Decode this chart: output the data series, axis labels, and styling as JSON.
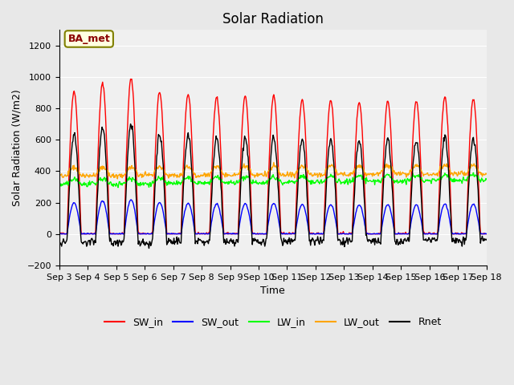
{
  "title": "Solar Radiation",
  "xlabel": "Time",
  "ylabel": "Solar Radiation (W/m2)",
  "ylim": [
    -200,
    1300
  ],
  "yticks": [
    -200,
    0,
    200,
    400,
    600,
    800,
    1000,
    1200
  ],
  "annotation": "BA_met",
  "legend": [
    "SW_in",
    "SW_out",
    "LW_in",
    "LW_out",
    "Rnet"
  ],
  "colors": {
    "SW_in": "red",
    "SW_out": "blue",
    "LW_in": "lime",
    "LW_out": "orange",
    "Rnet": "black"
  },
  "xtick_labels": [
    "Sep 3",
    "Sep 4",
    "Sep 5",
    "Sep 6",
    "Sep 7",
    "Sep 8",
    "Sep 9",
    "Sep 10",
    "Sep 11",
    "Sep 12",
    "Sep 13",
    "Sep 14",
    "Sep 15",
    "Sep 16",
    "Sep 17",
    "Sep 18"
  ],
  "background_color": "#e8e8e8",
  "plot_bg_color": "#f0f0f0",
  "days": 15,
  "pts_per_day": 48
}
